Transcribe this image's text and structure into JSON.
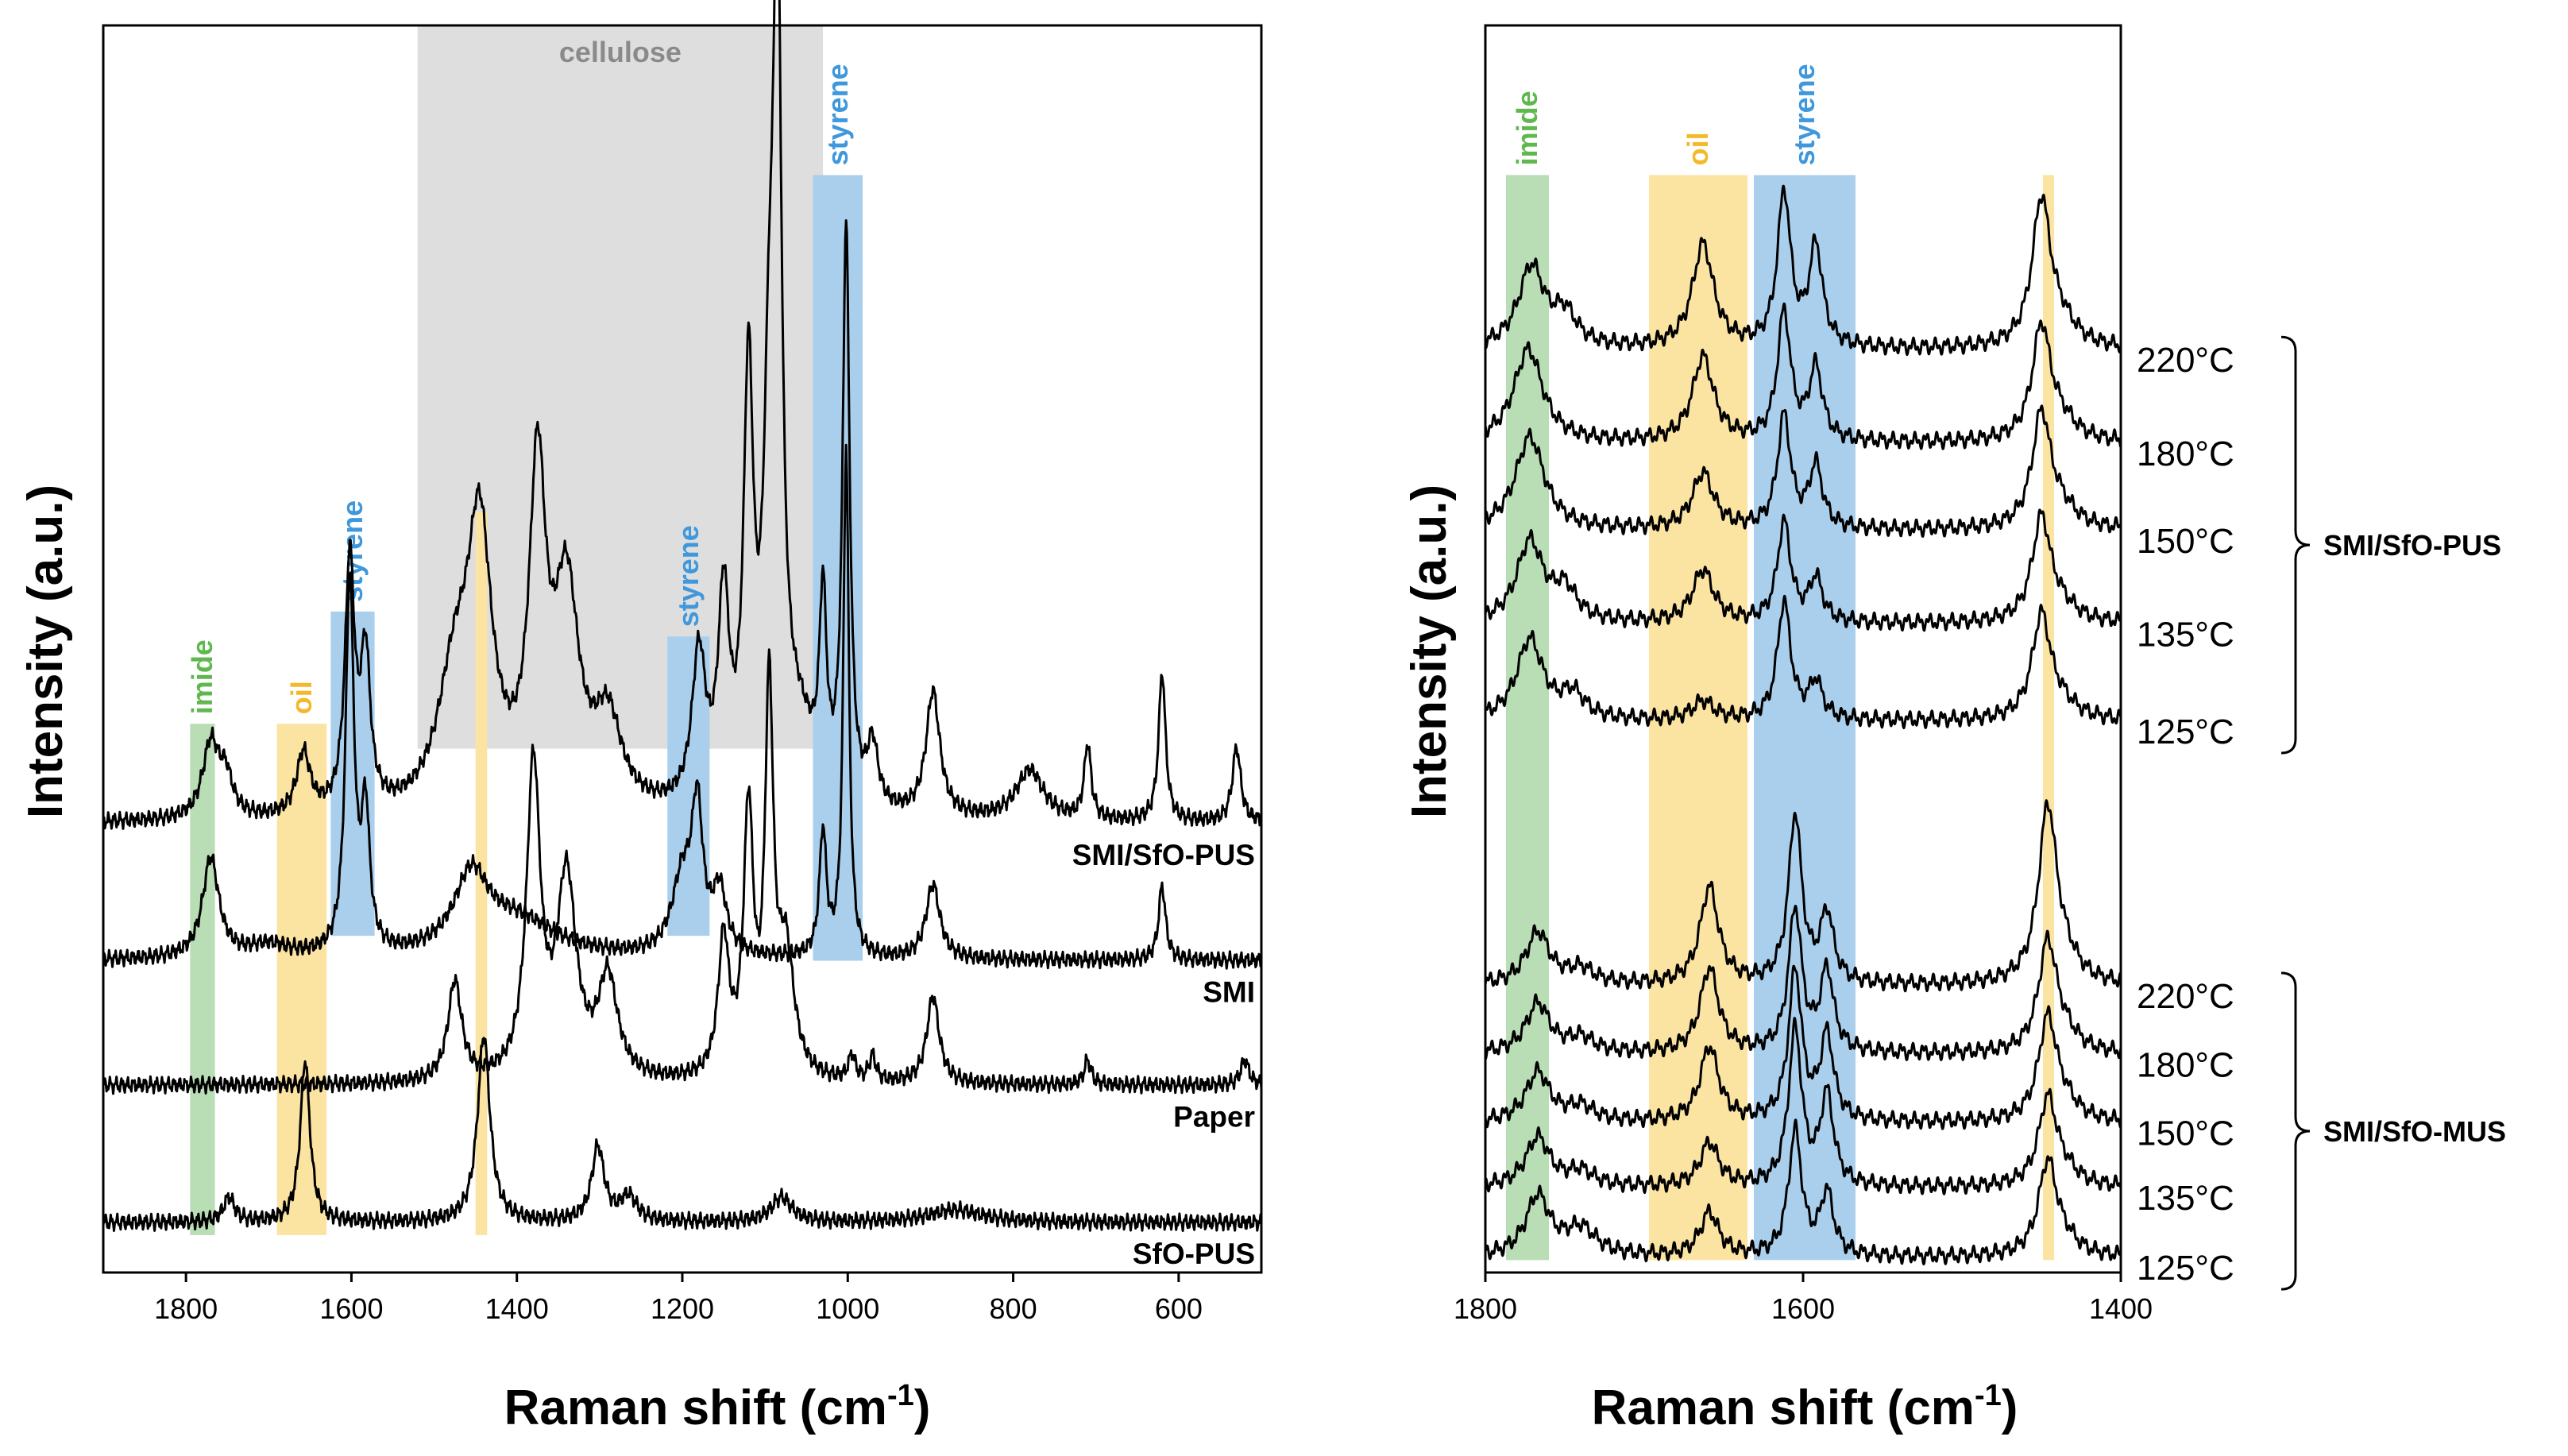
{
  "colors": {
    "imide": "#b9ddb5",
    "imide_text": "#5fb84e",
    "oil": "#fbe3a1",
    "oil_text": "#f4b92a",
    "styrene": "#a9cfec",
    "styrene_text": "#3f98dc",
    "cellulose": "#dedede",
    "cellulose_text": "#8a8a8a"
  },
  "chart_data": [
    {
      "type": "line",
      "title": "",
      "xlabel": "Raman shift (cm",
      "xlabel_sup": "-1",
      "xlabel_close": ")",
      "ylabel": "Intensity (a.u.)",
      "xlim": [
        1900,
        500
      ],
      "x_ticks": [
        "1800",
        "1600",
        "1400",
        "1200",
        "1000",
        "800",
        "600"
      ],
      "x_tick_values": [
        1800,
        1600,
        1400,
        1200,
        1000,
        800,
        600
      ],
      "bands": [
        {
          "name": "cellulose",
          "label": "cellulose",
          "from": 1520,
          "to": 1030,
          "y": [
            0.42,
            1.0
          ],
          "color": "cellulose"
        },
        {
          "name": "imide",
          "label": "imide",
          "from": 1795,
          "to": 1765,
          "y": [
            0.03,
            0.44
          ],
          "color": "imide"
        },
        {
          "name": "oil",
          "label": "oil",
          "from": 1690,
          "to": 1630,
          "y": [
            0.03,
            0.44
          ],
          "color": "oil"
        },
        {
          "name": "oil-1440",
          "label": "",
          "from": 1450,
          "to": 1436,
          "y": [
            0.03,
            0.61
          ],
          "color": "oil"
        },
        {
          "name": "styrene-1600",
          "label": "styrene",
          "from": 1625,
          "to": 1572,
          "y": [
            0.27,
            0.53
          ],
          "color": "styrene"
        },
        {
          "name": "styrene-1200",
          "label": "styrene",
          "from": 1218,
          "to": 1167,
          "y": [
            0.27,
            0.51
          ],
          "color": "styrene"
        },
        {
          "name": "styrene-1000",
          "label": "styrene",
          "from": 1042,
          "to": 982,
          "y": [
            0.25,
            0.88
          ],
          "color": "styrene"
        }
      ],
      "series": [
        {
          "name": "SMI/SfO-PUS",
          "label": "SMI/SfO-PUS",
          "baseline": 0.36,
          "peaks": [
            [
              1770,
              0.06,
              12
            ],
            [
              1752,
              0.03,
              10
            ],
            [
              1658,
              0.05,
              10
            ],
            [
              1602,
              0.2,
              7
            ],
            [
              1583,
              0.12,
              7
            ],
            [
              1475,
              0.1,
              25
            ],
            [
              1445,
              0.21,
              18
            ],
            [
              1375,
              0.26,
              12
            ],
            [
              1340,
              0.17,
              18
            ],
            [
              1290,
              0.07,
              20
            ],
            [
              1180,
              0.12,
              10
            ],
            [
              1150,
              0.16,
              8
            ],
            [
              1120,
              0.33,
              7
            ],
            [
              1095,
              0.26,
              8
            ],
            [
              1085,
              0.62,
              6
            ],
            [
              1060,
              0.06,
              25
            ],
            [
              1030,
              0.15,
              5
            ],
            [
              1002,
              0.46,
              5
            ],
            [
              970,
              0.05,
              8
            ],
            [
              897,
              0.1,
              10
            ],
            [
              780,
              0.04,
              20
            ],
            [
              710,
              0.06,
              5
            ],
            [
              620,
              0.12,
              5
            ],
            [
              530,
              0.06,
              6
            ]
          ]
        },
        {
          "name": "SMI",
          "label": "SMI",
          "baseline": 0.25,
          "peaks": [
            [
              1770,
              0.08,
              12
            ],
            [
              1700,
              0.01,
              30
            ],
            [
              1602,
              0.3,
              6
            ],
            [
              1583,
              0.11,
              6
            ],
            [
              1455,
              0.06,
              25
            ],
            [
              1400,
              0.03,
              60
            ],
            [
              1200,
              0.06,
              15
            ],
            [
              1182,
              0.11,
              8
            ],
            [
              1155,
              0.05,
              10
            ],
            [
              1030,
              0.1,
              5
            ],
            [
              1002,
              0.41,
              4
            ],
            [
              897,
              0.06,
              10
            ],
            [
              620,
              0.06,
              5
            ]
          ]
        },
        {
          "name": "Paper",
          "label": "Paper",
          "baseline": 0.15,
          "peaks": [
            [
              1475,
              0.08,
              10
            ],
            [
              1380,
              0.25,
              10
            ],
            [
              1340,
              0.16,
              14
            ],
            [
              1290,
              0.08,
              14
            ],
            [
              1150,
              0.11,
              8
            ],
            [
              1120,
              0.21,
              7
            ],
            [
              1095,
              0.3,
              6
            ],
            [
              1075,
              0.1,
              12
            ],
            [
              995,
              0.02,
              5
            ],
            [
              970,
              0.02,
              5
            ],
            [
              897,
              0.07,
              9
            ],
            [
              710,
              0.02,
              5
            ],
            [
              520,
              0.02,
              6
            ]
          ]
        },
        {
          "name": "SfO-PUS",
          "label": "SfO-PUS",
          "baseline": 0.04,
          "peaks": [
            [
              1748,
              0.02,
              8
            ],
            [
              1656,
              0.13,
              7
            ],
            [
              1440,
              0.15,
              9
            ],
            [
              1302,
              0.06,
              9
            ],
            [
              1265,
              0.02,
              12
            ],
            [
              1080,
              0.02,
              15
            ],
            [
              870,
              0.01,
              40
            ]
          ]
        }
      ]
    },
    {
      "type": "line",
      "title": "",
      "xlabel": "Raman shift (cm",
      "xlabel_sup": "-1",
      "xlabel_close": ")",
      "ylabel": "Intensity (a.u.)",
      "xlim": [
        1800,
        1400
      ],
      "x_ticks": [
        "1800",
        "1600",
        "1400"
      ],
      "x_tick_values": [
        1800,
        1600,
        1400
      ],
      "bands": [
        {
          "name": "imide",
          "label": "imide",
          "from": 1787,
          "to": 1760,
          "y": [
            0.01,
            0.88
          ],
          "color": "imide"
        },
        {
          "name": "oil",
          "label": "oil",
          "from": 1697,
          "to": 1635,
          "y": [
            0.01,
            0.88
          ],
          "color": "oil"
        },
        {
          "name": "styrene",
          "label": "styrene",
          "from": 1631,
          "to": 1567,
          "y": [
            0.01,
            0.88
          ],
          "color": "styrene"
        },
        {
          "name": "oil-1445",
          "label": "",
          "from": 1449,
          "to": 1442,
          "y": [
            0.01,
            0.88
          ],
          "color": "oil"
        }
      ],
      "groups": [
        {
          "name": "SMI/SfO-PUS",
          "label": "SMI/SfO-PUS",
          "temps": [
            "220°C",
            "180°C",
            "150°C",
            "135°C",
            "125°C"
          ]
        },
        {
          "name": "SMI/SfO-MUS",
          "label": "SMI/SfO-MUS",
          "temps": [
            "220°C",
            "180°C",
            "150°C",
            "135°C",
            "125°C"
          ]
        }
      ],
      "series": [
        {
          "name": "SMI/SfO-PUS 220°C",
          "group": 0,
          "baseline": 0.74,
          "peaks": [
            [
              1771,
              0.065,
              10
            ],
            [
              1750,
              0.025,
              9
            ],
            [
              1663,
              0.083,
              8
            ],
            [
              1612,
              0.123,
              5
            ],
            [
              1592,
              0.08,
              5
            ],
            [
              1450,
              0.115,
              7
            ],
            [
              1438,
              0.018,
              12
            ]
          ]
        },
        {
          "name": "SMI/SfO-PUS 180°C",
          "group": 0,
          "baseline": 0.665,
          "peaks": [
            [
              1773,
              0.075,
              11
            ],
            [
              1663,
              0.068,
              8
            ],
            [
              1612,
              0.103,
              5
            ],
            [
              1592,
              0.058,
              5
            ],
            [
              1450,
              0.09,
              7
            ],
            [
              1438,
              0.015,
              12
            ]
          ]
        },
        {
          "name": "SMI/SfO-PUS 150°C",
          "group": 0,
          "baseline": 0.595,
          "peaks": [
            [
              1772,
              0.075,
              11
            ],
            [
              1663,
              0.045,
              8
            ],
            [
              1612,
              0.09,
              5
            ],
            [
              1592,
              0.05,
              5
            ],
            [
              1450,
              0.09,
              7
            ],
            [
              1438,
              0.015,
              12
            ]
          ]
        },
        {
          "name": "SMI/SfO-PUS 135°C",
          "group": 0,
          "baseline": 0.52,
          "peaks": [
            [
              1772,
              0.065,
              10
            ],
            [
              1750,
              0.025,
              9
            ],
            [
              1663,
              0.042,
              8
            ],
            [
              1612,
              0.08,
              5
            ],
            [
              1592,
              0.035,
              5
            ],
            [
              1450,
              0.082,
              7
            ],
            [
              1438,
              0.012,
              12
            ]
          ]
        },
        {
          "name": "SMI/SfO-PUS 125°C",
          "group": 0,
          "baseline": 0.442,
          "peaks": [
            [
              1772,
              0.065,
              10
            ],
            [
              1745,
              0.02,
              9
            ],
            [
              1663,
              0.015,
              8
            ],
            [
              1612,
              0.095,
              5
            ],
            [
              1592,
              0.03,
              5
            ],
            [
              1450,
              0.082,
              7
            ],
            [
              1438,
              0.012,
              12
            ]
          ]
        },
        {
          "name": "SMI/SfO-MUS 220°C",
          "group": 1,
          "baseline": 0.23,
          "peaks": [
            [
              1767,
              0.042,
              9
            ],
            [
              1740,
              0.012,
              10
            ],
            [
              1659,
              0.078,
              7
            ],
            [
              1605,
              0.135,
              5
            ],
            [
              1585,
              0.055,
              5
            ],
            [
              1446,
              0.14,
              7
            ],
            [
              1435,
              0.015,
              10
            ]
          ]
        },
        {
          "name": "SMI/SfO-MUS 180°C",
          "group": 1,
          "baseline": 0.175,
          "peaks": [
            [
              1767,
              0.04,
              9
            ],
            [
              1740,
              0.012,
              10
            ],
            [
              1659,
              0.068,
              7
            ],
            [
              1605,
              0.115,
              5
            ],
            [
              1585,
              0.065,
              5
            ],
            [
              1446,
              0.088,
              7
            ],
            [
              1435,
              0.012,
              10
            ]
          ]
        },
        {
          "name": "SMI/SfO-MUS 150°C",
          "group": 1,
          "baseline": 0.12,
          "peaks": [
            [
              1767,
              0.04,
              9
            ],
            [
              1740,
              0.012,
              10
            ],
            [
              1659,
              0.06,
              7
            ],
            [
              1605,
              0.12,
              5
            ],
            [
              1585,
              0.068,
              5
            ],
            [
              1446,
              0.082,
              7
            ],
            [
              1435,
              0.012,
              10
            ]
          ]
        },
        {
          "name": "SMI/SfO-MUS 135°C",
          "group": 1,
          "baseline": 0.068,
          "peaks": [
            [
              1767,
              0.04,
              9
            ],
            [
              1740,
              0.012,
              10
            ],
            [
              1659,
              0.035,
              7
            ],
            [
              1605,
              0.125,
              5
            ],
            [
              1585,
              0.072,
              5
            ],
            [
              1446,
              0.07,
              7
            ],
            [
              1435,
              0.01,
              10
            ]
          ]
        },
        {
          "name": "SMI/SfO-MUS 125°C",
          "group": 1,
          "baseline": 0.012,
          "peaks": [
            [
              1767,
              0.048,
              9
            ],
            [
              1740,
              0.022,
              12
            ],
            [
              1659,
              0.035,
              7
            ],
            [
              1605,
              0.1,
              5
            ],
            [
              1585,
              0.05,
              5
            ],
            [
              1446,
              0.075,
              7
            ],
            [
              1435,
              0.01,
              10
            ]
          ]
        }
      ]
    }
  ]
}
